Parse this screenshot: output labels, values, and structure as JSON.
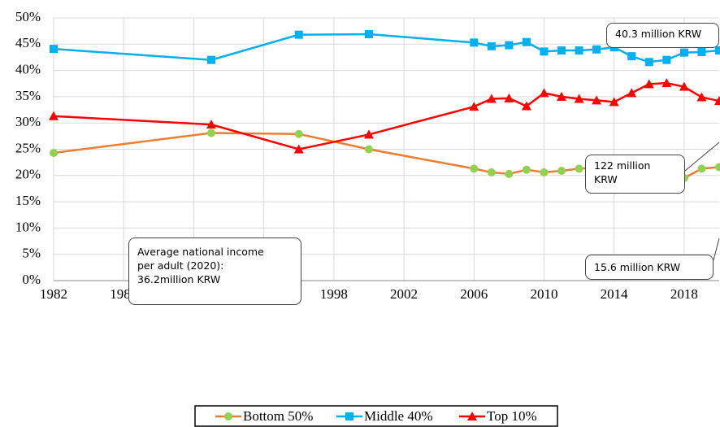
{
  "chart_data": {
    "type": "line",
    "x": [
      1982,
      1991,
      1996,
      2000,
      2006,
      2007,
      2008,
      2009,
      2010,
      2011,
      2012,
      2013,
      2014,
      2015,
      2016,
      2017,
      2018,
      2019,
      2020
    ],
    "series": [
      {
        "name": "Bottom 50%",
        "color": "#ed7d31",
        "marker": "circle",
        "marker_color": "#92d050",
        "values": [
          24.3,
          28.1,
          27.9,
          25.0,
          21.3,
          20.6,
          20.3,
          21.1,
          20.6,
          20.9,
          21.3,
          21.5,
          21.4,
          21.4,
          20.6,
          20.2,
          19.5,
          21.3,
          21.6
        ]
      },
      {
        "name": "Middle 40%",
        "color": "#00b0f0",
        "marker": "square",
        "marker_color": "#00b0f0",
        "values": [
          44.1,
          42.0,
          46.8,
          46.9,
          45.3,
          44.6,
          44.8,
          45.4,
          43.6,
          43.8,
          43.8,
          44.0,
          44.4,
          42.7,
          41.6,
          42.0,
          43.4,
          43.5,
          43.8
        ]
      },
      {
        "name": "Top 10%",
        "color": "#ff0000",
        "marker": "triangle",
        "marker_color": "#ff0000",
        "values": [
          31.3,
          29.7,
          25.0,
          27.8,
          33.1,
          34.6,
          34.7,
          33.2,
          35.7,
          35.0,
          34.6,
          34.3,
          34.0,
          35.7,
          37.4,
          37.6,
          36.9,
          34.9,
          34.2
        ]
      }
    ],
    "xlim": [
      1982,
      2020
    ],
    "xticks": [
      1982,
      1986,
      1990,
      1994,
      1998,
      2002,
      2006,
      2010,
      2014,
      2018
    ],
    "ylim": [
      0,
      50
    ],
    "yticks": [
      {
        "value": 0,
        "label": "0%"
      },
      {
        "value": 5,
        "label": "5%"
      },
      {
        "value": 10,
        "label": "10%"
      },
      {
        "value": 15,
        "label": "15%"
      },
      {
        "value": 20,
        "label": "20%"
      },
      {
        "value": 25,
        "label": "25%"
      },
      {
        "value": 30,
        "label": "30%"
      },
      {
        "value": 35,
        "label": "35%"
      },
      {
        "value": 40,
        "label": "40%"
      },
      {
        "value": 45,
        "label": "45%"
      },
      {
        "value": 50,
        "label": "50%"
      }
    ],
    "grid": true,
    "legend": "bottom",
    "annotations": [
      {
        "text": "40.3 million KRW"
      },
      {
        "text": "122 million KRW"
      },
      {
        "text": "15.6 million KRW"
      },
      {
        "text": "Average national income per adult (2020): 36.2million KRW"
      }
    ]
  }
}
